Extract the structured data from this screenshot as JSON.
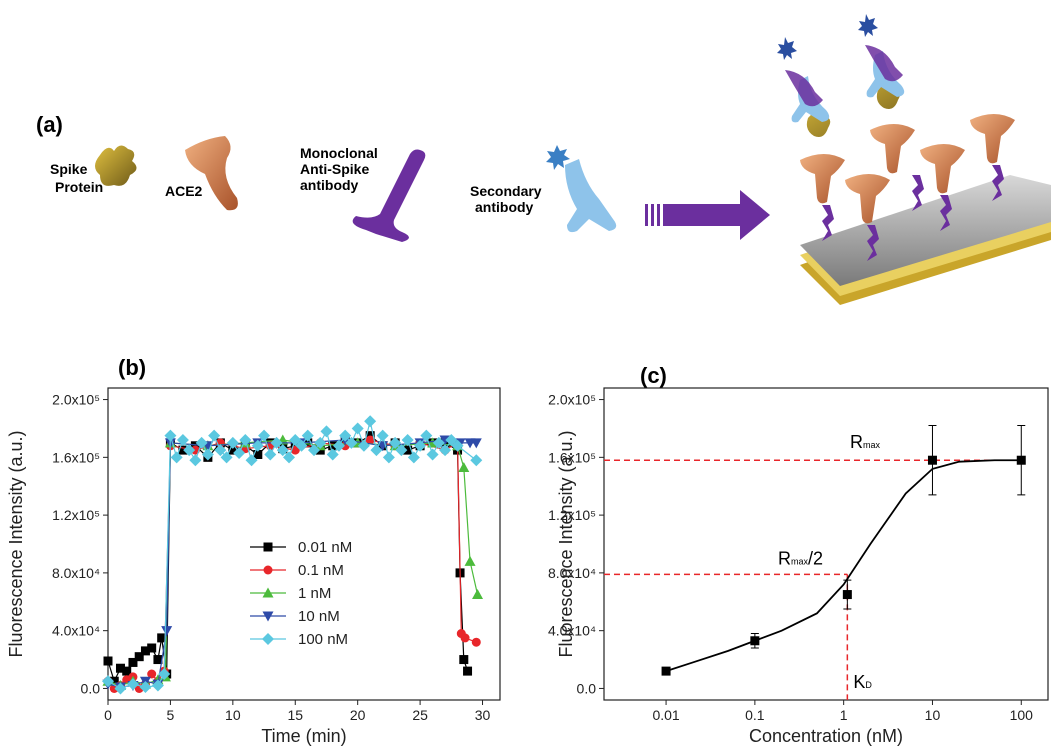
{
  "diagram": {
    "panel_label": "(a)",
    "labels": [
      [
        "Spike",
        "Protein"
      ],
      [
        "ACE2"
      ],
      [
        "Monoclonal",
        "Anti-Spike",
        "antibody"
      ],
      [
        "Secondary",
        "antibody"
      ]
    ]
  },
  "chart_data": [
    {
      "type": "line",
      "panel_label": "(b)",
      "xlabel": "Time (min)",
      "ylabel": "Fluorescence Intensity (a.u.)",
      "xlim": [
        0,
        31.4
      ],
      "xticks": [
        0,
        5,
        10,
        15,
        20,
        25,
        30
      ],
      "ylim": [
        -8000,
        208000
      ],
      "yticks": [
        {
          "value": 0,
          "label": "0.0"
        },
        {
          "value": 40000,
          "label": "4.0x10⁴"
        },
        {
          "value": 80000,
          "label": "8.0x10⁴"
        },
        {
          "value": 120000,
          "label": "1.2x10⁵"
        },
        {
          "value": 160000,
          "label": "1.6x10⁵"
        },
        {
          "value": 200000,
          "label": "2.0x10⁵"
        }
      ],
      "legend": "center left",
      "series": [
        {
          "name": "0.01 nM",
          "color": "#000000",
          "marker": "square",
          "x": [
            0,
            0.5,
            1,
            1.5,
            2,
            2.5,
            3,
            3.5,
            4,
            4.3,
            4.7,
            5,
            6,
            7,
            8,
            9,
            10,
            11,
            12,
            13,
            14,
            15,
            16,
            17,
            18,
            19,
            20,
            21,
            22,
            23,
            24,
            25,
            26,
            27,
            28,
            28.2,
            28.5,
            28.8
          ],
          "values": [
            19000,
            5000,
            14000,
            12000,
            18000,
            22000,
            26000,
            28000,
            20000,
            35000,
            10000,
            170000,
            165000,
            168000,
            160000,
            170000,
            165000,
            168000,
            162000,
            170000,
            166000,
            168000,
            170000,
            165000,
            168000,
            172000,
            170000,
            175000,
            168000,
            170000,
            165000,
            168000,
            170000,
            170000,
            165000,
            80000,
            20000,
            12000
          ]
        },
        {
          "name": "0.1 nM",
          "color": "#e8262a",
          "marker": "circle",
          "x": [
            0,
            0.5,
            1,
            1.5,
            2,
            2.5,
            3,
            3.5,
            4,
            4.5,
            5,
            7,
            9,
            11,
            13,
            15,
            17,
            19,
            21,
            23,
            25,
            27,
            28,
            28.3,
            28.6,
            29.5
          ],
          "values": [
            5000,
            0,
            2000,
            6000,
            8000,
            0,
            3000,
            10000,
            5000,
            12000,
            168000,
            165000,
            170000,
            166000,
            168000,
            165000,
            170000,
            168000,
            172000,
            168000,
            170000,
            165000,
            170000,
            38000,
            35000,
            32000
          ]
        },
        {
          "name": "1 nM",
          "color": "#4cbb3c",
          "marker": "triangle-up",
          "x": [
            0,
            1,
            2,
            3,
            4,
            4.6,
            5,
            8,
            11,
            14,
            17,
            20,
            23,
            26,
            28,
            28.5,
            29,
            29.6
          ],
          "values": [
            5000,
            2000,
            5000,
            3000,
            6000,
            8000,
            170000,
            168000,
            170000,
            172000,
            168000,
            170000,
            168000,
            170000,
            168000,
            153000,
            88000,
            65000
          ]
        },
        {
          "name": "10 nM",
          "color": "#2e4aa8",
          "marker": "triangle-down",
          "x": [
            0,
            1,
            2,
            3,
            4,
            4.7,
            5,
            8,
            12,
            15.5,
            19,
            22,
            25,
            27,
            28.2,
            29,
            29.5
          ],
          "values": [
            3000,
            1000,
            2000,
            5000,
            3000,
            40000,
            170000,
            168000,
            170000,
            170000,
            172000,
            168000,
            170000,
            172000,
            170000,
            170000,
            170000
          ]
        },
        {
          "name": "100 nM",
          "color": "#5bc8e0",
          "marker": "diamond",
          "x": [
            0,
            1,
            2,
            3,
            4,
            4.5,
            5,
            5.5,
            6,
            6.5,
            7,
            7.5,
            8,
            8.5,
            9,
            9.5,
            10,
            10.5,
            11,
            11.5,
            12,
            12.5,
            13,
            13.5,
            14,
            14.5,
            15,
            15.5,
            16,
            16.5,
            17,
            17.5,
            18,
            18.5,
            19,
            19.5,
            20,
            20.5,
            21,
            21.5,
            22,
            22.5,
            23,
            23.5,
            24,
            24.5,
            25,
            25.5,
            26,
            26.5,
            27,
            27.5,
            28,
            29.5
          ],
          "values": [
            5000,
            0,
            3000,
            1000,
            2000,
            10000,
            175000,
            160000,
            172000,
            165000,
            158000,
            170000,
            162000,
            175000,
            165000,
            160000,
            170000,
            163000,
            172000,
            158000,
            168000,
            175000,
            162000,
            170000,
            165000,
            160000,
            172000,
            168000,
            175000,
            165000,
            170000,
            178000,
            162000,
            168000,
            175000,
            170000,
            180000,
            168000,
            185000,
            165000,
            175000,
            160000,
            170000,
            165000,
            172000,
            160000,
            168000,
            175000,
            162000,
            170000,
            165000,
            172000,
            168000,
            158000
          ]
        }
      ]
    },
    {
      "type": "scatter",
      "panel_label": "(c)",
      "xlabel": "Concentration (nM)",
      "ylabel": "Fluorescence Intensity (a.u.)",
      "xscale": "log",
      "xlim": [
        0.002,
        200
      ],
      "xticks": [
        0.01,
        0.1,
        1,
        10,
        100
      ],
      "ylim": [
        -8000,
        208000
      ],
      "yticks": [
        {
          "value": 0,
          "label": "0.0"
        },
        {
          "value": 40000,
          "label": "4.0x10⁴"
        },
        {
          "value": 80000,
          "label": "8.0x10⁴"
        },
        {
          "value": 120000,
          "label": "1.2x10⁵"
        },
        {
          "value": 160000,
          "label": "1.6x10⁵"
        },
        {
          "value": 200000,
          "label": "2.0x10⁵"
        }
      ],
      "color": "#000000",
      "x": [
        0.01,
        0.1,
        1.1,
        10,
        100
      ],
      "values": [
        12000,
        33000,
        65000,
        158000,
        158000
      ],
      "errors": [
        1500,
        5000,
        10000,
        24000,
        24000
      ],
      "fit": {
        "x": [
          0.01,
          0.02,
          0.05,
          0.1,
          0.2,
          0.5,
          1,
          2,
          5,
          10,
          20,
          50,
          100
        ],
        "values": [
          12000,
          18000,
          26000,
          33000,
          40000,
          52000,
          72000,
          100000,
          135000,
          152000,
          157000,
          158000,
          158000
        ]
      },
      "guide_color": "#e8262a",
      "rmax": 158000,
      "half_rmax": 79000,
      "kd": 1.1,
      "rmax_label": {
        "main": "R",
        "sub": "max"
      },
      "half_label": {
        "main": "R",
        "sub": "max",
        "tail": "/2"
      },
      "kd_label": {
        "main": "K",
        "sub": "D"
      }
    }
  ]
}
